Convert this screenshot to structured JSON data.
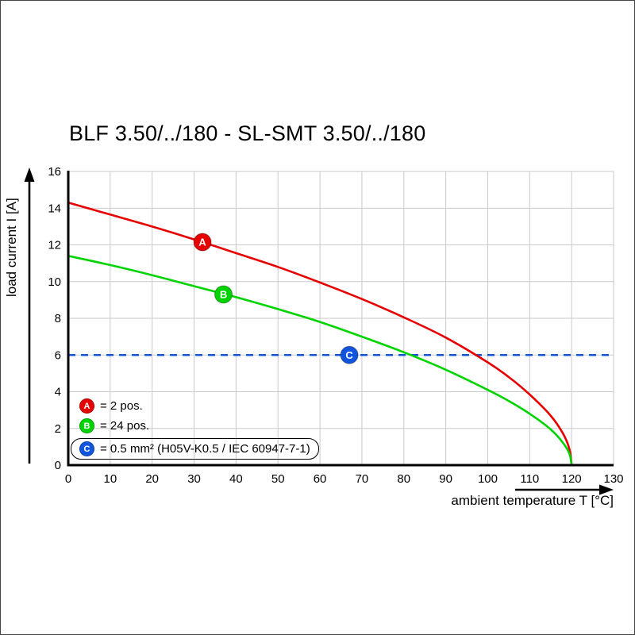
{
  "page": {
    "title": "BLF 3.50/../180 - SL-SMT 3.50/../180"
  },
  "chart_data": {
    "type": "line",
    "title": "BLF 3.50/../180 - SL-SMT 3.50/../180",
    "xlabel": "ambient temperature T [°C]",
    "ylabel": "load current I [A]",
    "xlim": [
      0,
      130
    ],
    "ylim": [
      0,
      16
    ],
    "xticks": [
      0,
      10,
      20,
      30,
      40,
      50,
      60,
      70,
      80,
      90,
      100,
      110,
      120,
      130
    ],
    "yticks": [
      0,
      2,
      4,
      6,
      8,
      10,
      12,
      14,
      16
    ],
    "grid": true,
    "grid_color": "#c9c9c9",
    "axis_color": "#000000",
    "series": [
      {
        "name": "A",
        "label": "2 pos.",
        "color": "#e60000",
        "x": [
          0,
          10,
          20,
          30,
          40,
          50,
          60,
          70,
          80,
          90,
          100,
          105,
          110,
          115,
          118,
          119.5,
          120
        ],
        "y": [
          14.3,
          13.65,
          13.0,
          12.3,
          11.55,
          10.8,
          9.95,
          9.05,
          8.05,
          6.95,
          5.6,
          4.8,
          3.85,
          2.7,
          1.7,
          0.85,
          0
        ]
      },
      {
        "name": "B",
        "label": "24 pos.",
        "color": "#00d400",
        "x": [
          0,
          10,
          20,
          30,
          40,
          50,
          60,
          70,
          80,
          90,
          100,
          105,
          110,
          115,
          118,
          119.5,
          120
        ],
        "y": [
          11.4,
          10.9,
          10.35,
          9.75,
          9.15,
          8.5,
          7.8,
          7.0,
          6.15,
          5.2,
          4.1,
          3.5,
          2.8,
          1.95,
          1.2,
          0.6,
          0
        ]
      },
      {
        "name": "C",
        "label": "0.5 mm² (H05V-K0.5 / IEC 60947-7-1)",
        "color": "#1155dd",
        "style": "dashed",
        "y_const": 6
      }
    ],
    "markers": [
      {
        "label": "A",
        "x": 32,
        "y": 12.15,
        "color": "#e60000"
      },
      {
        "label": "B",
        "x": 37,
        "y": 9.3,
        "color": "#00d400"
      },
      {
        "label": "C",
        "x": 67,
        "y": 6.0,
        "color": "#1155dd"
      }
    ],
    "legend": [
      {
        "label": "A",
        "text": "= 2 pos.",
        "color": "#e60000",
        "boxed": false
      },
      {
        "label": "B",
        "text": "= 24 pos.",
        "color": "#00d400",
        "boxed": false
      },
      {
        "label": "C",
        "text": "= 0.5 mm² (H05V-K0.5 / IEC 60947-7-1)",
        "color": "#1155dd",
        "boxed": true
      }
    ]
  }
}
